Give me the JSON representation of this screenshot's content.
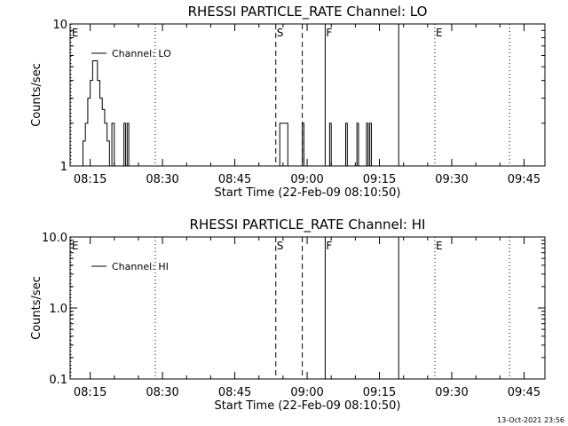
{
  "footer_timestamp": "13-Oct-2021 23:56",
  "chart_data": [
    {
      "type": "line",
      "title": "RHESSI PARTICLE_RATE Channel: LO",
      "xlabel": "Start Time (22-Feb-09 08:10:50)",
      "ylabel": "Counts/sec",
      "yscale": "log",
      "ylim": [
        1,
        10
      ],
      "yticks": [
        {
          "value": 1,
          "label": "1"
        },
        {
          "value": 10,
          "label": "10"
        }
      ],
      "xlim": [
        "08:10:50",
        "09:49:20"
      ],
      "xticks": [
        "08:15",
        "08:30",
        "08:45",
        "09:00",
        "09:15",
        "09:30",
        "09:45"
      ],
      "legend": {
        "label": "Channel: LO",
        "placement": "top-left"
      },
      "markers": [
        {
          "time": "08:11:00",
          "label": "E",
          "style": "dotted"
        },
        {
          "time": "08:28:30",
          "label": "",
          "style": "dotted"
        },
        {
          "time": "08:53:30",
          "label": "S",
          "style": "dashed"
        },
        {
          "time": "08:59:00",
          "label": "",
          "style": "dashed"
        },
        {
          "time": "09:03:45",
          "label": "F",
          "style": "solid"
        },
        {
          "time": "09:19:00",
          "label": "",
          "style": "solid"
        },
        {
          "time": "09:26:30",
          "label": "E",
          "style": "dotted"
        },
        {
          "time": "09:42:00",
          "label": "",
          "style": "dotted"
        }
      ],
      "series": [
        {
          "name": "Channel: LO",
          "points": [
            [
              "08:12:50",
              1
            ],
            [
              "08:13:30",
              1.5
            ],
            [
              "08:14:00",
              2
            ],
            [
              "08:14:30",
              3
            ],
            [
              "08:15:00",
              4
            ],
            [
              "08:15:30",
              5.5
            ],
            [
              "08:16:00",
              5.5
            ],
            [
              "08:16:30",
              4
            ],
            [
              "08:17:00",
              3
            ],
            [
              "08:17:30",
              2.5
            ],
            [
              "08:18:00",
              2
            ],
            [
              "08:18:30",
              1.5
            ],
            [
              "08:19:00",
              1
            ],
            [
              "08:19:30",
              2
            ],
            [
              "08:20:00",
              1
            ],
            [
              "08:21:30",
              1
            ],
            [
              "08:22:00",
              2
            ],
            [
              "08:22:20",
              1
            ],
            [
              "08:22:40",
              2
            ],
            [
              "08:23:00",
              1
            ],
            [
              "08:54:00",
              1
            ],
            [
              "08:54:20",
              2
            ],
            [
              "08:55:40",
              2
            ],
            [
              "08:56:00",
              1
            ],
            [
              "08:58:40",
              1
            ],
            [
              "08:59:00",
              2
            ],
            [
              "08:59:20",
              1
            ],
            [
              "09:04:20",
              1
            ],
            [
              "09:04:40",
              2
            ],
            [
              "09:05:00",
              1
            ],
            [
              "09:07:40",
              1
            ],
            [
              "09:08:00",
              2
            ],
            [
              "09:08:20",
              1
            ],
            [
              "09:10:00",
              1
            ],
            [
              "09:10:20",
              2
            ],
            [
              "09:10:40",
              1
            ],
            [
              "09:12:00",
              1
            ],
            [
              "09:12:20",
              2
            ],
            [
              "09:12:40",
              1
            ],
            [
              "09:13:00",
              2
            ],
            [
              "09:13:20",
              1
            ]
          ]
        }
      ]
    },
    {
      "type": "line",
      "title": "RHESSI PARTICLE_RATE Channel: HI",
      "xlabel": "Start Time (22-Feb-09 08:10:50)",
      "ylabel": "Counts/sec",
      "yscale": "log",
      "ylim": [
        0.1,
        10
      ],
      "yticks": [
        {
          "value": 0.1,
          "label": "0.1"
        },
        {
          "value": 1,
          "label": "1.0"
        },
        {
          "value": 10,
          "label": "10.0"
        }
      ],
      "xlim": [
        "08:10:50",
        "09:49:20"
      ],
      "xticks": [
        "08:15",
        "08:30",
        "08:45",
        "09:00",
        "09:15",
        "09:30",
        "09:45"
      ],
      "legend": {
        "label": "Channel: HI",
        "placement": "top-left"
      },
      "markers": [
        {
          "time": "08:11:00",
          "label": "E",
          "style": "dotted"
        },
        {
          "time": "08:28:30",
          "label": "",
          "style": "dotted"
        },
        {
          "time": "08:53:30",
          "label": "S",
          "style": "dashed"
        },
        {
          "time": "08:59:00",
          "label": "",
          "style": "dashed"
        },
        {
          "time": "09:03:45",
          "label": "F",
          "style": "solid"
        },
        {
          "time": "09:19:00",
          "label": "",
          "style": "solid"
        },
        {
          "time": "09:26:30",
          "label": "E",
          "style": "dotted"
        },
        {
          "time": "09:42:00",
          "label": "",
          "style": "dotted"
        }
      ],
      "series": [
        {
          "name": "Channel: HI",
          "points": []
        }
      ]
    }
  ]
}
